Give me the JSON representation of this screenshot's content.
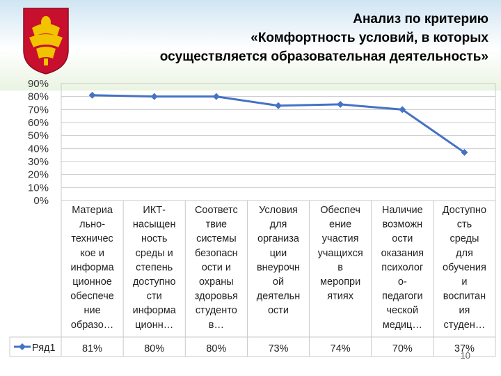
{
  "slide": {
    "title_lines": [
      "Анализ по критерию",
      "«Комфортность условий, в которых",
      "осуществляется образовательная деятельность»"
    ],
    "page_number": "10"
  },
  "colors": {
    "series": "#4472c4",
    "grid": "#c9c9c9",
    "coat_red": "#c8102e",
    "coat_gold": "#f2c300"
  },
  "chart_data": {
    "type": "line",
    "title": "",
    "xlabel": "",
    "ylabel": "",
    "ylim": [
      0,
      90
    ],
    "yticks": [
      "0%",
      "10%",
      "20%",
      "30%",
      "40%",
      "50%",
      "60%",
      "70%",
      "80%",
      "90%"
    ],
    "grid": true,
    "legend": "bottom-left (table)",
    "categories": [
      [
        "Материа",
        "льно-",
        "техничес",
        "кое и",
        "информа",
        "ционное",
        "обеспече",
        "ние",
        "образо…"
      ],
      [
        "ИКТ-",
        "насыщен",
        "ность",
        "среды и",
        "степень",
        "доступно",
        "сти",
        "информа",
        "ционн…"
      ],
      [
        "Соответс",
        "твие",
        "системы",
        "безопасн",
        "ости и",
        "охраны",
        "здоровья",
        "студенто",
        "в…"
      ],
      [
        "Условия",
        "для",
        "организа",
        "ции",
        "внеурочн",
        "ой",
        "деятельн",
        "ости"
      ],
      [
        "Обеспеч",
        "ение",
        "участия",
        "учащихся",
        "в",
        "меропри",
        "ятиях"
      ],
      [
        "Наличие",
        "возможн",
        "ости",
        "оказания",
        "психолог",
        "о-",
        "педагоги",
        "ческой",
        "медиц…"
      ],
      [
        "Доступно",
        "сть",
        "среды",
        "для",
        "обучения",
        "и",
        "воспитан",
        "ия",
        "студен…"
      ]
    ],
    "series": [
      {
        "name": "Ряд1",
        "values": [
          81,
          80,
          80,
          73,
          74,
          70,
          37
        ],
        "labels": [
          "81%",
          "80%",
          "80%",
          "73%",
          "74%",
          "70%",
          "37%"
        ]
      }
    ]
  }
}
